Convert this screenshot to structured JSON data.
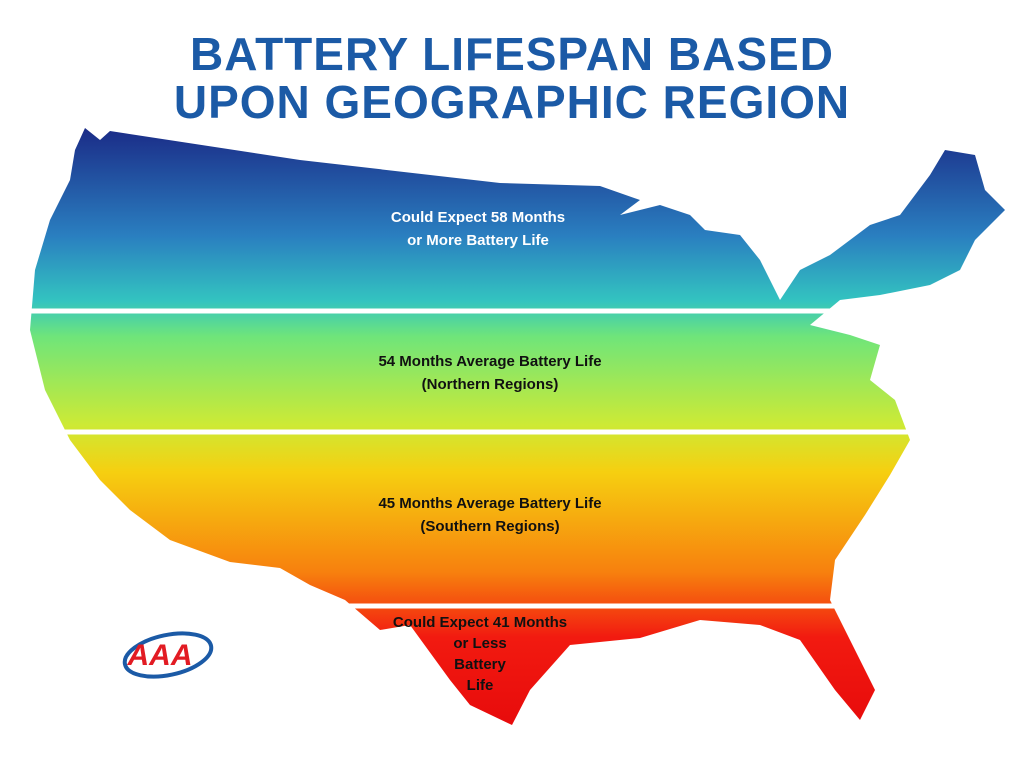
{
  "header": {
    "title": [
      "BATTERY LIFESPAN BASED",
      "UPON GEOGRAPHIC REGION"
    ]
  },
  "regions": [
    {
      "label": [
        "Could Expect 58 Months",
        "or More Battery Life"
      ]
    },
    {
      "label": [
        "54 Months Average Battery Life",
        "(Northern Regions)"
      ]
    },
    {
      "label": [
        "45 Months Average Battery Life",
        "(Southern Regions)"
      ]
    },
    {
      "label": [
        "Could Expect 41 Months",
        "or Less",
        "Battery",
        "Life"
      ]
    }
  ],
  "logo": {
    "text": "AAA"
  }
}
